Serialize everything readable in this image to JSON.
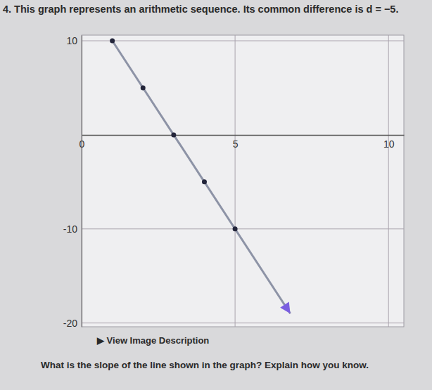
{
  "chart_data": {
    "type": "line",
    "title": "4. This graph represents an arithmetic sequence. Its common difference is d = −5.",
    "annotations": [
      "▶ View Image Description",
      "What is the slope of the line shown in the graph? Explain how you know."
    ],
    "xlim": [
      0,
      10.5
    ],
    "xticks": [
      0,
      5,
      10
    ],
    "ylim": [
      -20.4,
      10.6
    ],
    "yticks": [
      -20,
      -10,
      10
    ],
    "grid": true,
    "series": [
      {
        "type": "line",
        "x": [
          1,
          6.8
        ],
        "values": [
          10,
          -19
        ],
        "color": "#8d93a6",
        "marker": "arrow"
      },
      {
        "type": "scatter",
        "x": [
          1,
          2,
          3,
          4,
          5
        ],
        "values": [
          10,
          5,
          0,
          -5,
          -10
        ],
        "color": "#23253a",
        "marker": "circle"
      }
    ]
  }
}
